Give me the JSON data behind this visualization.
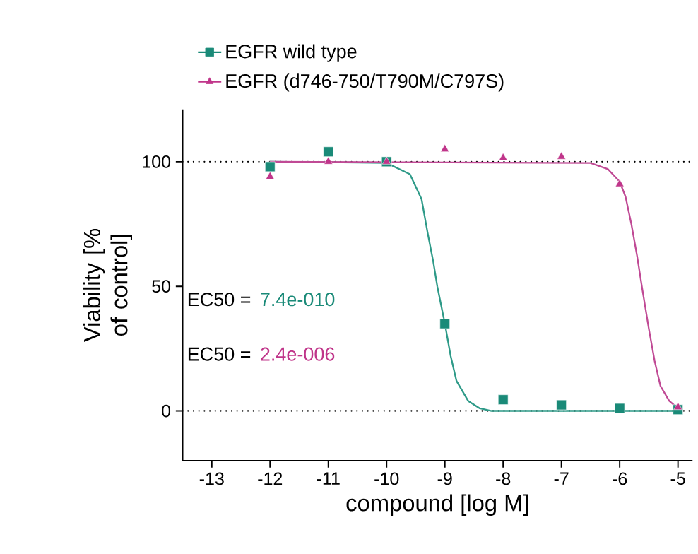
{
  "chart_data": {
    "type": "scatter",
    "xlabel": "compound [log M]",
    "ylabel": "Viability [% of control]",
    "xlim": [
      -13.5,
      -4.75
    ],
    "ylim": [
      -20,
      121
    ],
    "xticks": [
      -13,
      -12,
      -11,
      -10,
      -9,
      -8,
      -7,
      -6,
      -5
    ],
    "yticks": [
      0,
      50,
      100
    ],
    "legend": "top",
    "grid": false,
    "series": [
      {
        "name": "EGFR wild type",
        "color": "#1a8a78",
        "marker": "square",
        "x": [
          -12,
          -11,
          -10,
          -9,
          -8,
          -7,
          -6,
          -5
        ],
        "values": [
          98,
          104,
          100,
          35,
          4.5,
          2.4,
          1,
          0.5
        ]
      },
      {
        "name": "EGFR (d746-750/T790M/C797S)",
        "color": "#c0358a",
        "marker": "triangle",
        "x": [
          -12,
          -11,
          -10,
          -9,
          -8,
          -7,
          -6,
          -5
        ],
        "values": [
          94,
          100,
          100,
          105,
          101.5,
          102,
          91,
          1.5
        ]
      },
      {
        "type": "line",
        "color": "#2e9a88",
        "x": [
          -12,
          -10,
          -9.6,
          -9.4,
          -9.3,
          -9.2,
          -9.13,
          -9.0,
          -8.9,
          -8.8,
          -8.6,
          -8.4,
          -8.2,
          -5
        ],
        "values": [
          100,
          99.5,
          95,
          85,
          72,
          60,
          50,
          35,
          22,
          12,
          4,
          1,
          0,
          0
        ]
      },
      {
        "type": "line",
        "color": "#c04a95",
        "x": [
          -12,
          -6.5,
          -6.2,
          -6.0,
          -5.9,
          -5.8,
          -5.7,
          -5.62,
          -5.5,
          -5.4,
          -5.3,
          -5.15,
          -5
        ],
        "values": [
          100,
          99.5,
          97,
          92,
          86,
          75,
          62,
          50,
          33,
          20,
          10,
          4,
          1
        ]
      }
    ],
    "ref_lines": [
      {
        "axis": "y",
        "value": 100,
        "line_style": "dotted",
        "color": "#000000"
      },
      {
        "axis": "y",
        "value": 0,
        "line_style": "dotted",
        "color": "#000000"
      }
    ],
    "annotations": [
      "EC50 =",
      "7.4e-010",
      "EC50 =",
      "2.4e-006"
    ]
  }
}
